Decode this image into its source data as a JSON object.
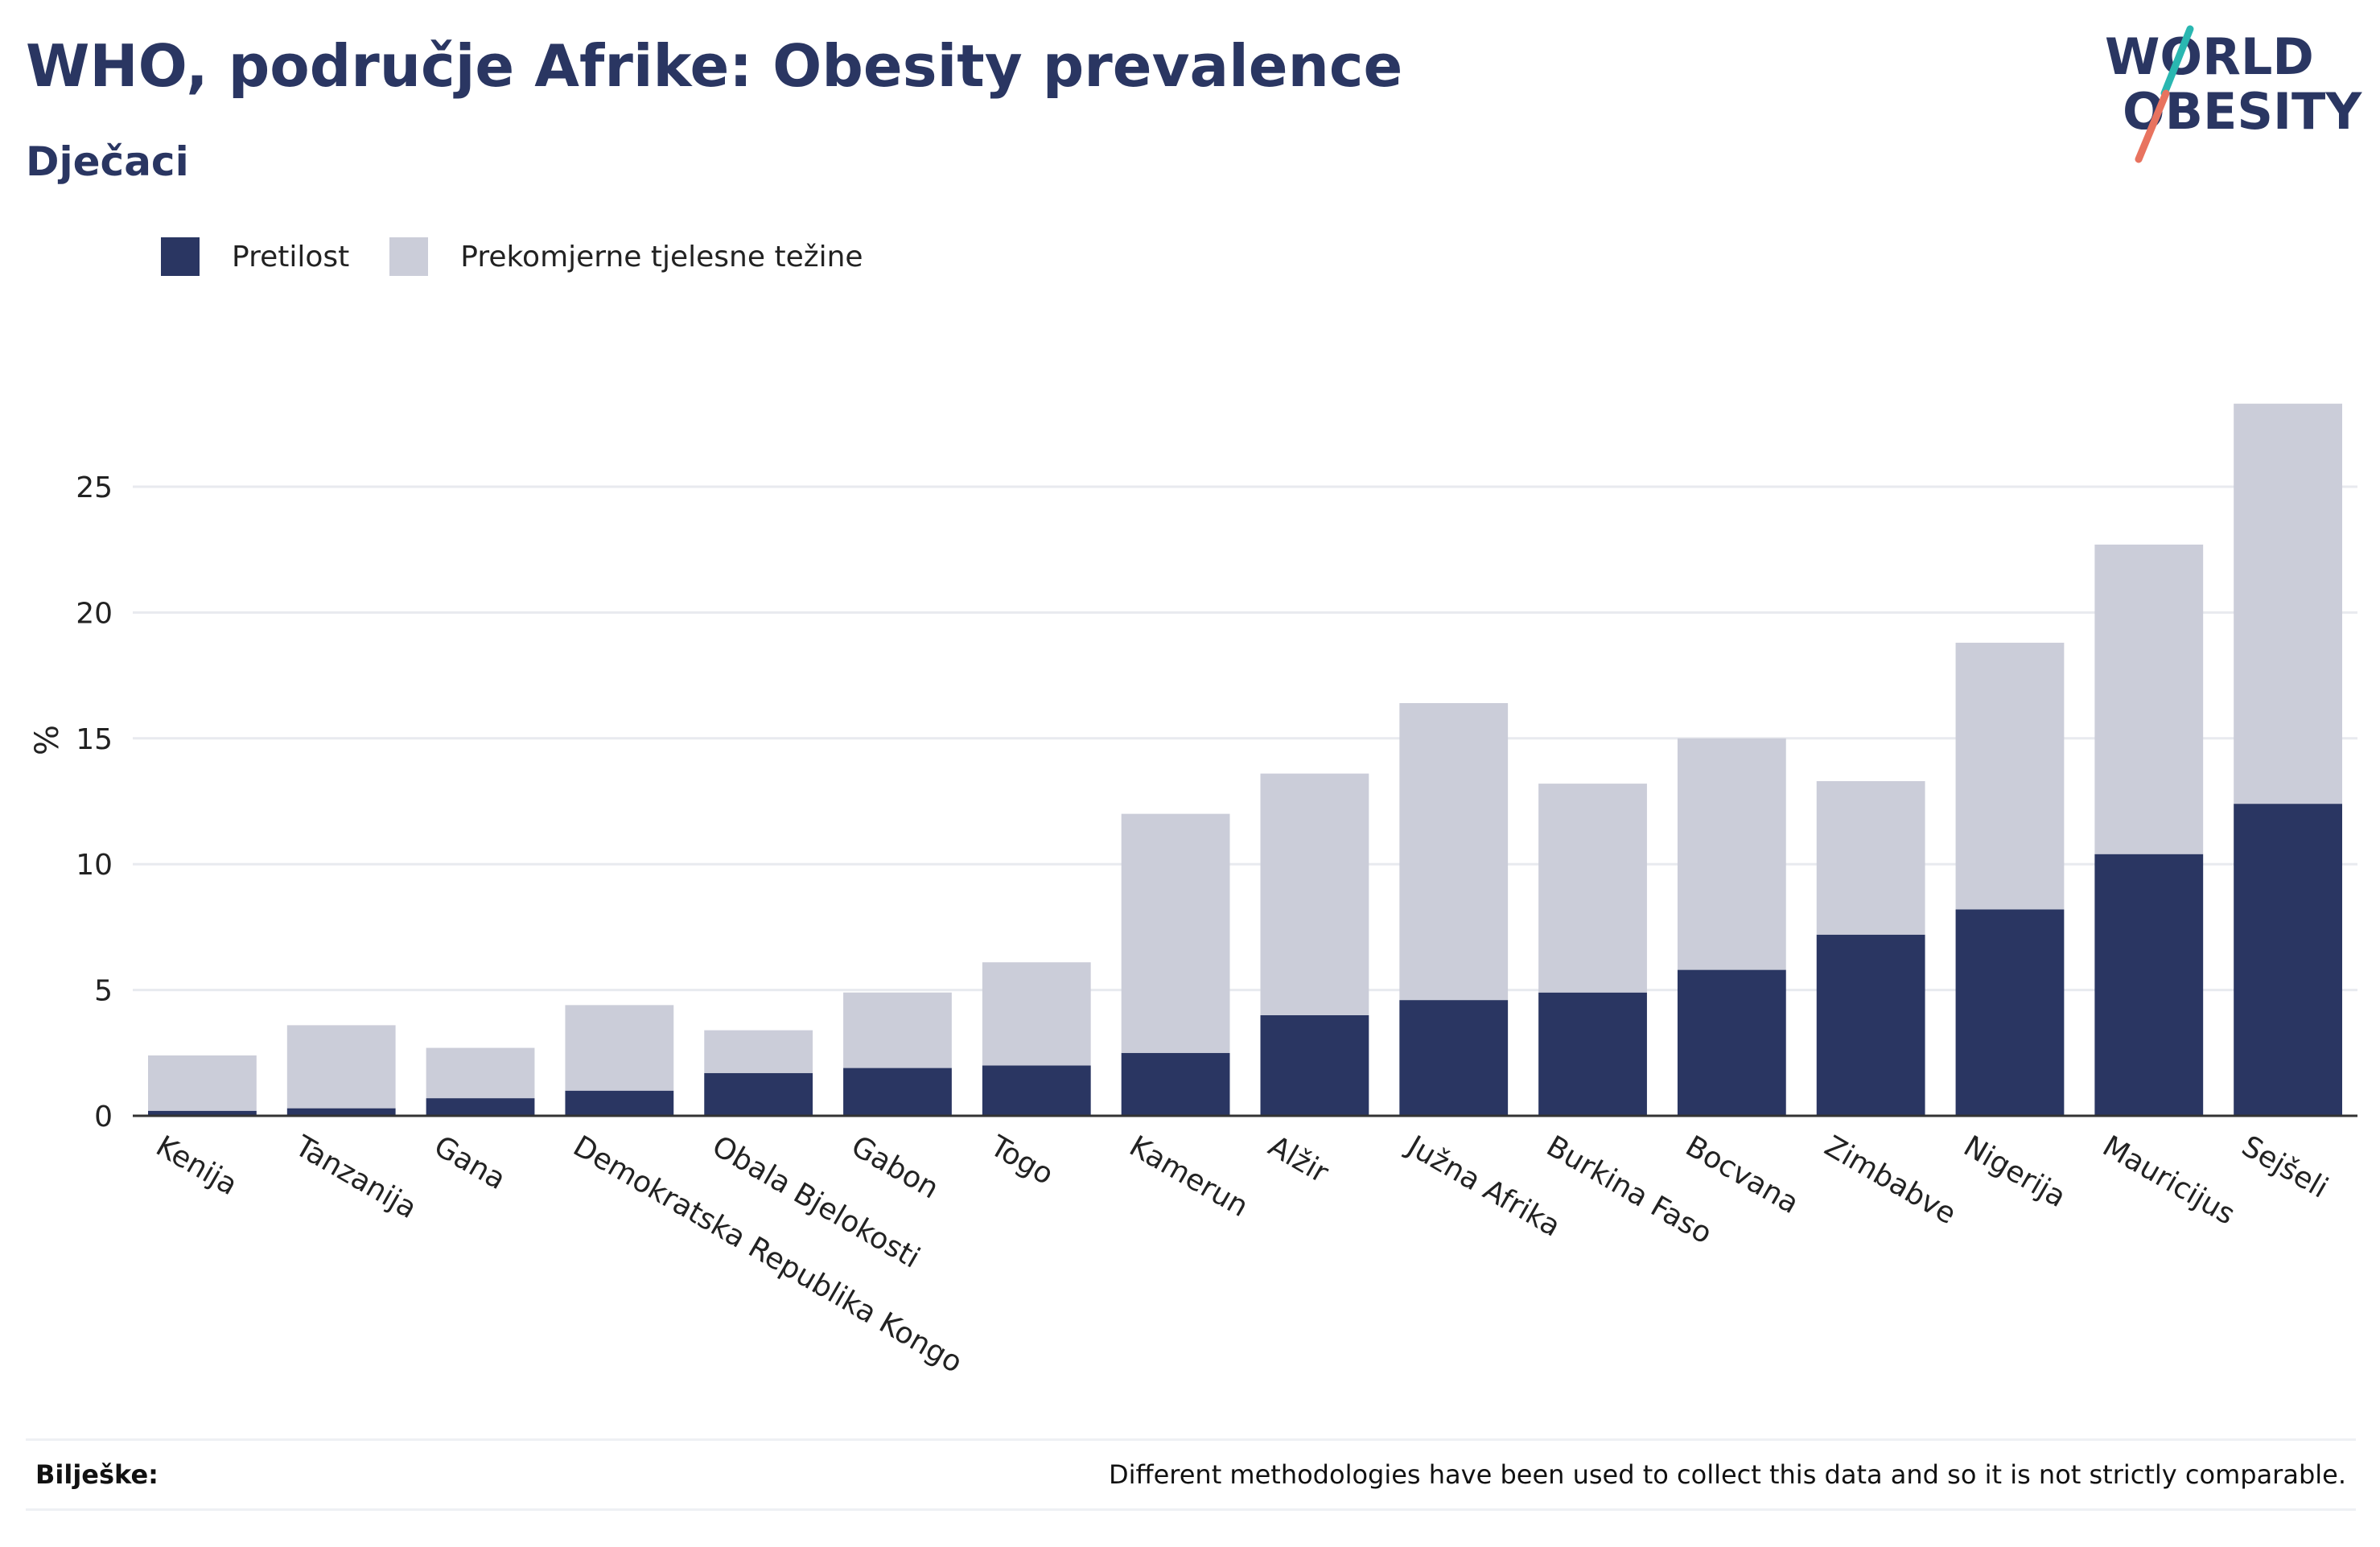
{
  "header": {
    "title": "WHO, područje Afrike: Obesity prevalence",
    "subtitle": "Dječaci"
  },
  "logo": {
    "line1": "WORLD",
    "line2": "OBESITY"
  },
  "legend": {
    "items": [
      {
        "label": "Pretilost",
        "color": "#2a3662"
      },
      {
        "label": "Prekomjerne tjelesne težine",
        "color": "#cbcdd9"
      }
    ]
  },
  "notes": {
    "label": "Bilješke:",
    "text": "Different methodologies have been used to collect this data and so it is not strictly comparable."
  },
  "chart_data": {
    "type": "bar",
    "stacked": true,
    "categories": [
      "Kenija",
      "Tanzanija",
      "Gana",
      "Demokratska Republika Kongo",
      "Obala Bjelokosti",
      "Gabon",
      "Togo",
      "Kamerun",
      "Alžir",
      "Južna Afrika",
      "Burkina Faso",
      "Bocvana",
      "Zimbabve",
      "Nigerija",
      "Mauricijus",
      "Sejšeli"
    ],
    "series": [
      {
        "name": "Pretilost",
        "color": "#2a3662",
        "values": [
          0.2,
          0.3,
          0.7,
          1.0,
          1.7,
          1.9,
          2.0,
          2.5,
          4.0,
          4.6,
          4.9,
          5.8,
          7.2,
          8.2,
          10.4,
          12.4
        ]
      },
      {
        "name": "Prekomjerne tjelesne težine",
        "color": "#cbcdd9",
        "values": [
          2.2,
          3.3,
          2.0,
          3.4,
          1.7,
          3.0,
          4.1,
          9.5,
          9.6,
          11.8,
          8.3,
          9.2,
          6.1,
          10.6,
          12.3,
          15.9
        ]
      }
    ],
    "ylabel": "%",
    "yticks": [
      0,
      5,
      10,
      15,
      20,
      25
    ],
    "ylim": [
      0,
      30
    ],
    "grid": true,
    "legend_position": "top-left"
  }
}
